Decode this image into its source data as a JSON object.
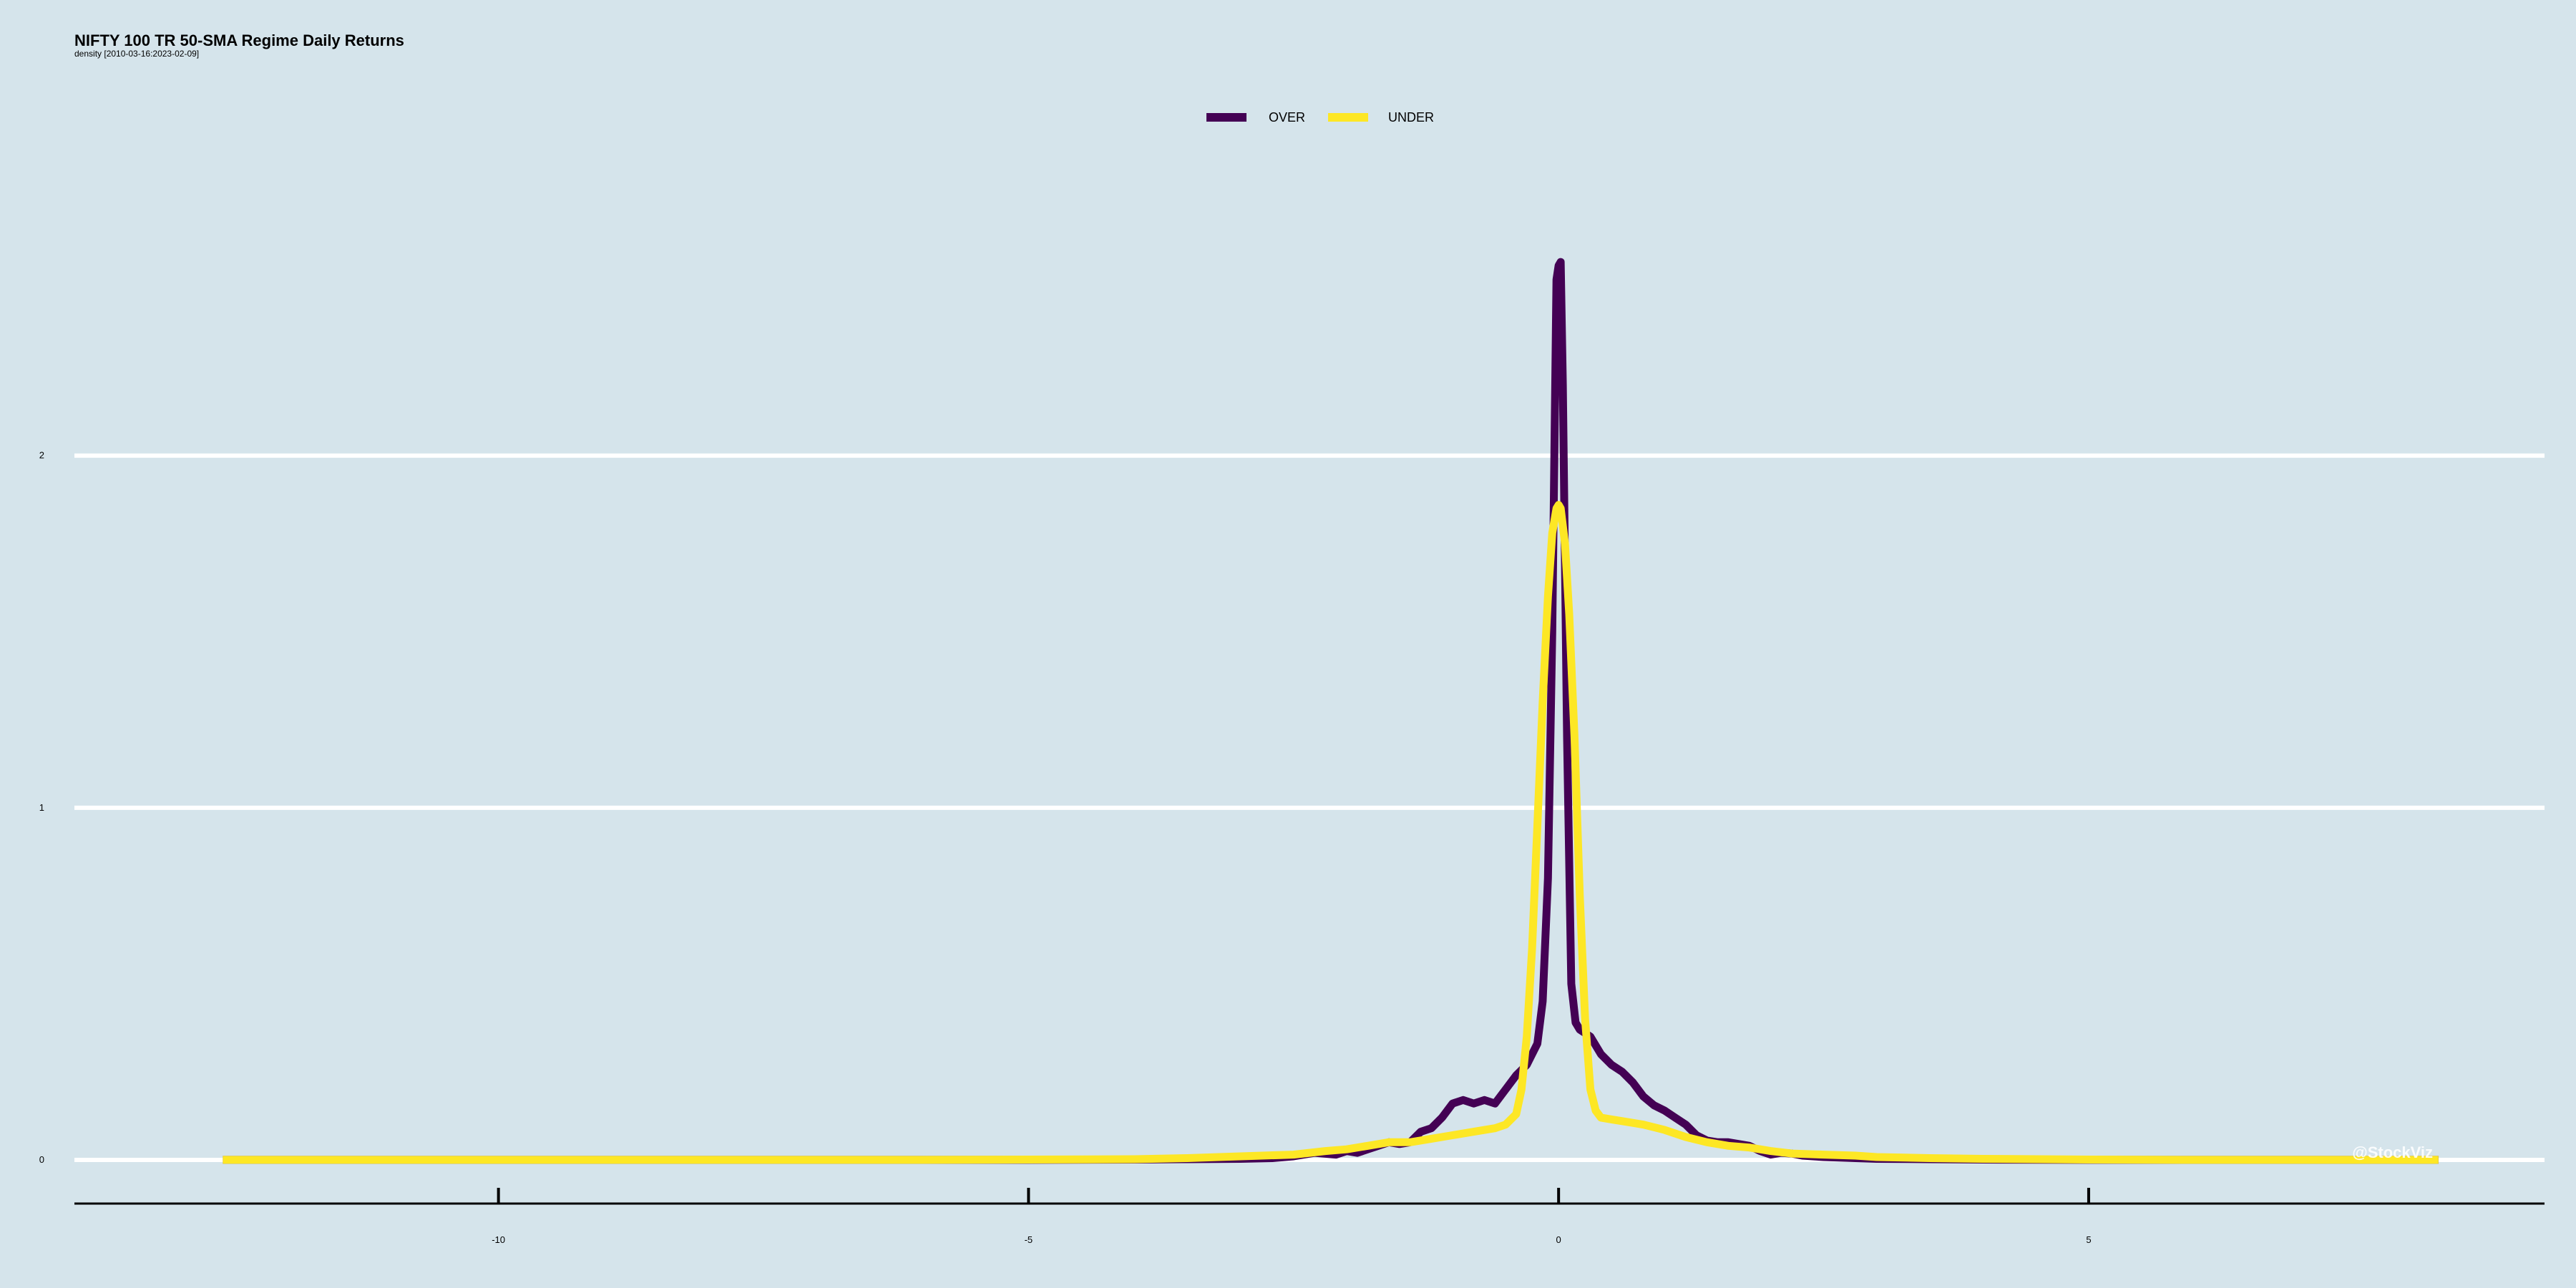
{
  "chart_data": {
    "type": "line",
    "title": "NIFTY 100 TR 50-SMA Regime Daily Returns",
    "subtitle": "density [2010-03-16:2023-02-09]",
    "xlabel": "",
    "ylabel": "",
    "xlim": [
      -14,
      9.3
    ],
    "ylim": [
      -0.12,
      3.05
    ],
    "x_ticks": [
      -10,
      -5,
      0,
      5
    ],
    "y_ticks": [
      0,
      1,
      2
    ],
    "grid": "horizontal",
    "legend_position": "top",
    "series": [
      {
        "name": "OVER",
        "color": "#440154",
        "points": [
          [
            -12.6,
            0
          ],
          [
            -10,
            0
          ],
          [
            -8,
            0
          ],
          [
            -6,
            0
          ],
          [
            -5,
            0
          ],
          [
            -4,
            0.001
          ],
          [
            -3.5,
            0.002
          ],
          [
            -3,
            0.003
          ],
          [
            -2.7,
            0.005
          ],
          [
            -2.5,
            0.01
          ],
          [
            -2.3,
            0.02
          ],
          [
            -2.1,
            0.015
          ],
          [
            -2,
            0.025
          ],
          [
            -1.9,
            0.02
          ],
          [
            -1.8,
            0.03
          ],
          [
            -1.7,
            0.04
          ],
          [
            -1.6,
            0.05
          ],
          [
            -1.5,
            0.045
          ],
          [
            -1.4,
            0.05
          ],
          [
            -1.3,
            0.08
          ],
          [
            -1.2,
            0.09
          ],
          [
            -1.1,
            0.12
          ],
          [
            -1.0,
            0.16
          ],
          [
            -0.9,
            0.17
          ],
          [
            -0.8,
            0.16
          ],
          [
            -0.7,
            0.17
          ],
          [
            -0.6,
            0.16
          ],
          [
            -0.5,
            0.2
          ],
          [
            -0.4,
            0.24
          ],
          [
            -0.3,
            0.27
          ],
          [
            -0.2,
            0.33
          ],
          [
            -0.15,
            0.45
          ],
          [
            -0.1,
            0.8
          ],
          [
            -0.06,
            1.5
          ],
          [
            -0.02,
            2.5
          ],
          [
            0.0,
            2.54
          ],
          [
            0.02,
            2.55
          ],
          [
            0.04,
            2.2
          ],
          [
            0.08,
            1.2
          ],
          [
            0.12,
            0.5
          ],
          [
            0.16,
            0.39
          ],
          [
            0.2,
            0.37
          ],
          [
            0.3,
            0.35
          ],
          [
            0.4,
            0.3
          ],
          [
            0.5,
            0.27
          ],
          [
            0.6,
            0.25
          ],
          [
            0.7,
            0.22
          ],
          [
            0.8,
            0.18
          ],
          [
            0.9,
            0.155
          ],
          [
            1.0,
            0.14
          ],
          [
            1.1,
            0.12
          ],
          [
            1.2,
            0.1
          ],
          [
            1.3,
            0.07
          ],
          [
            1.4,
            0.055
          ],
          [
            1.5,
            0.05
          ],
          [
            1.6,
            0.05
          ],
          [
            1.7,
            0.045
          ],
          [
            1.8,
            0.04
          ],
          [
            1.9,
            0.025
          ],
          [
            2.0,
            0.015
          ],
          [
            2.1,
            0.02
          ],
          [
            2.2,
            0.018
          ],
          [
            2.3,
            0.012
          ],
          [
            2.5,
            0.008
          ],
          [
            2.7,
            0.006
          ],
          [
            3,
            0.003
          ],
          [
            3.5,
            0.002
          ],
          [
            4,
            0.001
          ],
          [
            5,
            0
          ],
          [
            6,
            0
          ],
          [
            7,
            0
          ],
          [
            8,
            0
          ],
          [
            8.3,
            0
          ]
        ]
      },
      {
        "name": "UNDER",
        "color": "#fde725",
        "points": [
          [
            -12.6,
            0
          ],
          [
            -10,
            0
          ],
          [
            -8,
            0
          ],
          [
            -6,
            0
          ],
          [
            -5,
            0.001
          ],
          [
            -4,
            0.002
          ],
          [
            -3.5,
            0.005
          ],
          [
            -3,
            0.01
          ],
          [
            -2.5,
            0.015
          ],
          [
            -2.2,
            0.025
          ],
          [
            -2.0,
            0.03
          ],
          [
            -1.8,
            0.04
          ],
          [
            -1.6,
            0.05
          ],
          [
            -1.4,
            0.05
          ],
          [
            -1.2,
            0.06
          ],
          [
            -1.0,
            0.07
          ],
          [
            -0.8,
            0.08
          ],
          [
            -0.6,
            0.09
          ],
          [
            -0.5,
            0.1
          ],
          [
            -0.4,
            0.13
          ],
          [
            -0.35,
            0.2
          ],
          [
            -0.3,
            0.35
          ],
          [
            -0.25,
            0.6
          ],
          [
            -0.2,
            0.95
          ],
          [
            -0.15,
            1.3
          ],
          [
            -0.1,
            1.6
          ],
          [
            -0.06,
            1.78
          ],
          [
            -0.02,
            1.85
          ],
          [
            0.0,
            1.86
          ],
          [
            0.02,
            1.85
          ],
          [
            0.06,
            1.75
          ],
          [
            0.1,
            1.55
          ],
          [
            0.15,
            1.2
          ],
          [
            0.2,
            0.75
          ],
          [
            0.25,
            0.4
          ],
          [
            0.3,
            0.2
          ],
          [
            0.35,
            0.14
          ],
          [
            0.4,
            0.12
          ],
          [
            0.5,
            0.115
          ],
          [
            0.6,
            0.11
          ],
          [
            0.8,
            0.1
          ],
          [
            1.0,
            0.085
          ],
          [
            1.2,
            0.065
          ],
          [
            1.4,
            0.05
          ],
          [
            1.6,
            0.04
          ],
          [
            1.8,
            0.035
          ],
          [
            2.0,
            0.025
          ],
          [
            2.2,
            0.018
          ],
          [
            2.5,
            0.015
          ],
          [
            2.8,
            0.012
          ],
          [
            3.0,
            0.008
          ],
          [
            3.5,
            0.005
          ],
          [
            4,
            0.003
          ],
          [
            5,
            0.001
          ],
          [
            6,
            0
          ],
          [
            7,
            0
          ],
          [
            8,
            0
          ],
          [
            8.3,
            0
          ]
        ]
      }
    ],
    "watermark": "@StockViz"
  }
}
